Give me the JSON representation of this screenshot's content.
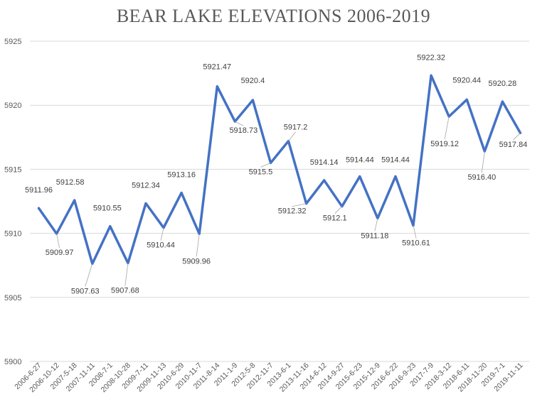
{
  "chart_data": {
    "type": "line",
    "title": "BEAR LAKE ELEVATIONS 2006-2019",
    "xlabel": "",
    "ylabel": "",
    "ylim": [
      5900,
      5925
    ],
    "yticks": [
      5900,
      5905,
      5910,
      5915,
      5920,
      5925
    ],
    "grid": true,
    "line_color": "#4472C4",
    "categories": [
      "2006-6-27",
      "2006-10-12",
      "2007-5-18",
      "2007-11-11",
      "2008-7-1",
      "2008-10-28",
      "2009-7-11",
      "2009-11-13",
      "2010-6-29",
      "2010-11-7",
      "2011-8-14",
      "2011-1-9",
      "2012-5-8",
      "2012-11-7",
      "2013-6-1",
      "2013-11-16",
      "2014-6-12",
      "2014-9-27",
      "2015-6-23",
      "2015-12-9",
      "2016-6-22",
      "2016-9-23",
      "2017-7-9",
      "2018-3-12",
      "2018-6-11",
      "2018-11-20",
      "2019-7-1",
      "2019-11-11"
    ],
    "values": [
      5911.96,
      5909.97,
      5912.58,
      5907.63,
      5910.55,
      5907.68,
      5912.34,
      5910.44,
      5913.16,
      5909.96,
      5921.47,
      5918.73,
      5920.4,
      5915.5,
      5917.2,
      5912.32,
      5914.14,
      5912.1,
      5914.44,
      5911.18,
      5914.44,
      5910.61,
      5922.32,
      5919.12,
      5920.44,
      5916.4,
      5920.28,
      5917.84
    ],
    "data_labels": [
      "5911.96",
      "5909.97",
      "5912.58",
      "5907.63",
      "5910.55",
      "5907.68",
      "5912.34",
      "5910.44",
      "5913.16",
      "5909.96",
      "5921.47",
      "5918.73",
      "5920.4",
      "5915.5",
      "5917.2",
      "5912.32",
      "5914.14",
      "5912.1",
      "5914.44",
      "5911.18",
      "5914.44",
      "5910.61",
      "5922.32",
      "5919.12",
      "5920.44",
      "5916.40",
      "5920.28",
      "5917.84"
    ]
  }
}
